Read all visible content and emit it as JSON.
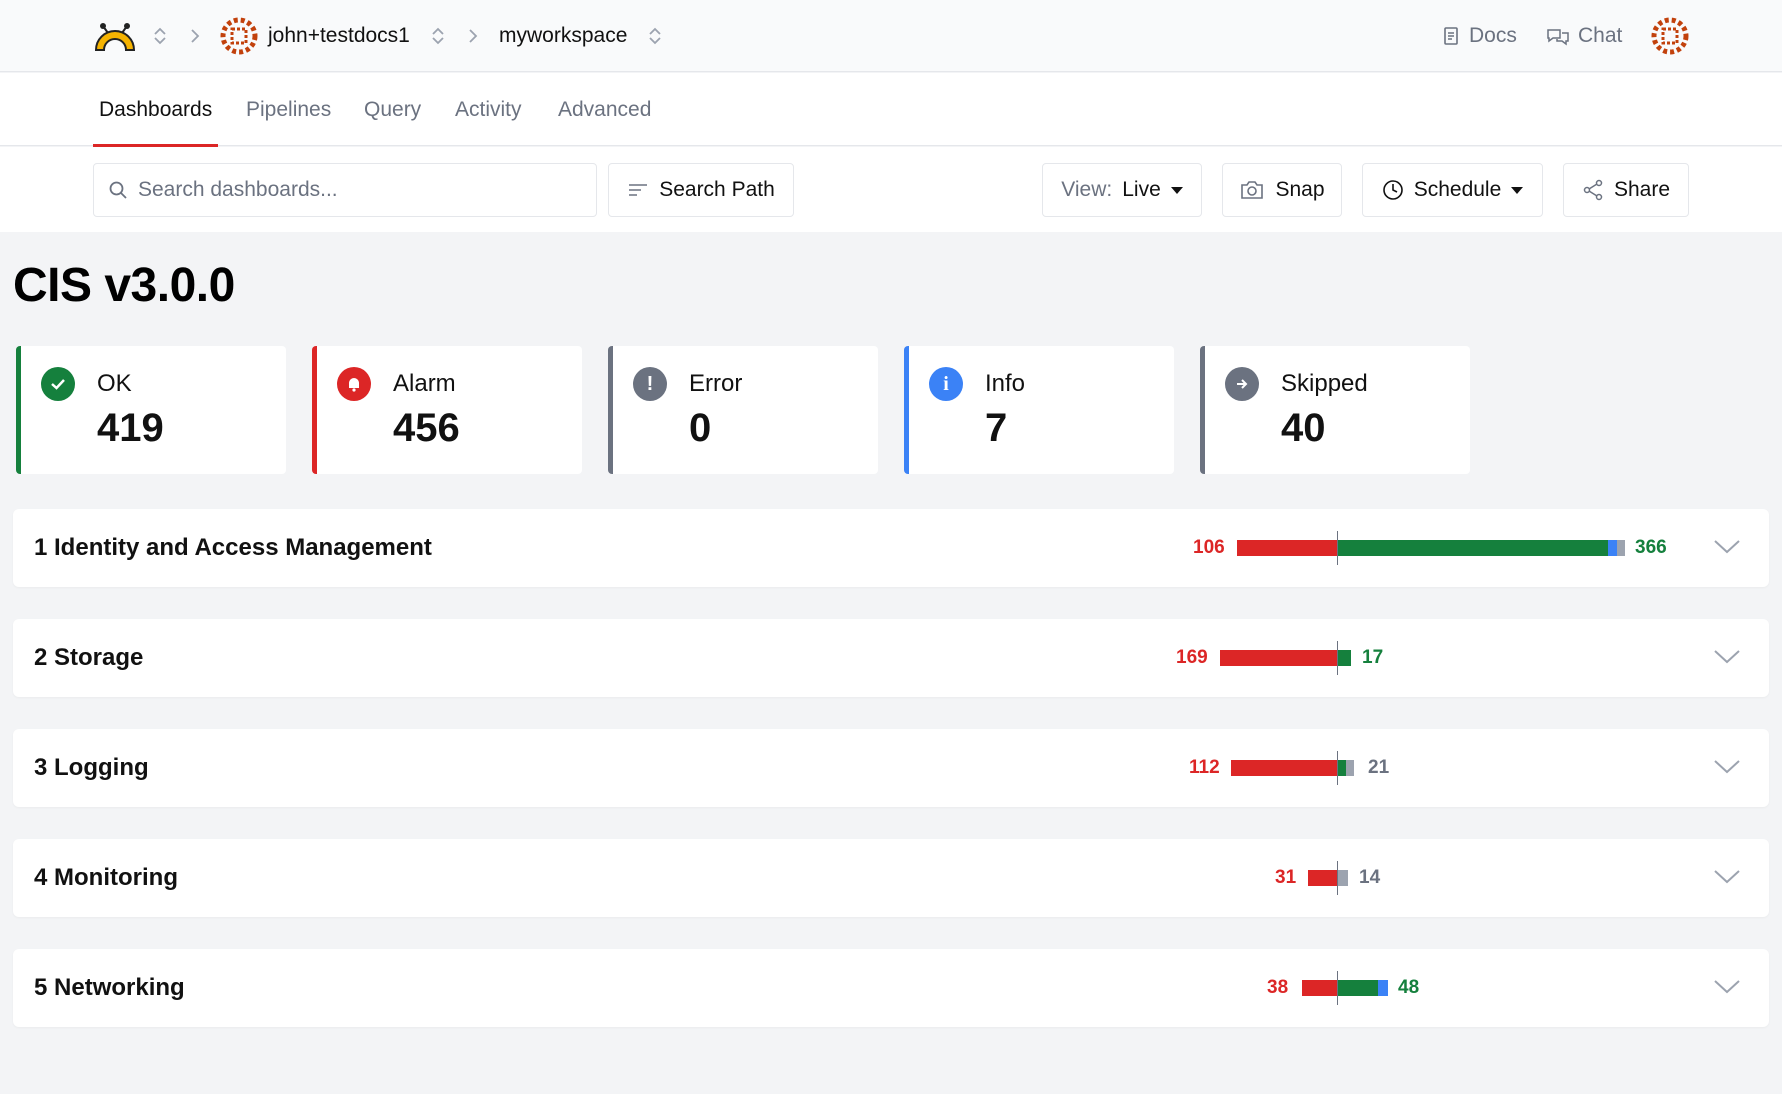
{
  "breadcrumb": {
    "org": "john+testdocs1",
    "workspace": "myworkspace"
  },
  "header_links": {
    "docs": "Docs",
    "chat": "Chat"
  },
  "tabs": [
    {
      "label": "Dashboards",
      "active": true
    },
    {
      "label": "Pipelines",
      "active": false
    },
    {
      "label": "Query",
      "active": false
    },
    {
      "label": "Activity",
      "active": false
    },
    {
      "label": "Advanced",
      "active": false
    }
  ],
  "toolbar": {
    "search_placeholder": "Search dashboards...",
    "search_path_label": "Search Path",
    "view_label": "View:",
    "view_value": "Live",
    "snap_label": "Snap",
    "schedule_label": "Schedule",
    "share_label": "Share"
  },
  "page_title": "CIS v3.0.0",
  "summary": [
    {
      "label": "OK",
      "value": "419",
      "color": "#15803d",
      "icon": "check-circle-icon"
    },
    {
      "label": "Alarm",
      "value": "456",
      "color": "#dc2626",
      "icon": "bell-icon"
    },
    {
      "label": "Error",
      "value": "0",
      "color": "#6b7280",
      "icon": "exclamation-icon"
    },
    {
      "label": "Info",
      "value": "7",
      "color": "#3b82f6",
      "icon": "info-icon"
    },
    {
      "label": "Skipped",
      "value": "40",
      "color": "#6b7280",
      "icon": "arrow-right-icon"
    }
  ],
  "benchmarks": [
    {
      "title": "1 Identity and Access Management",
      "alarm": "106",
      "right_value": "366",
      "right_type": "ok"
    },
    {
      "title": "2 Storage",
      "alarm": "169",
      "right_value": "17",
      "right_type": "ok"
    },
    {
      "title": "3 Logging",
      "alarm": "112",
      "right_value": "21",
      "right_type": "skip"
    },
    {
      "title": "4 Monitoring",
      "alarm": "31",
      "right_value": "14",
      "right_type": "skip"
    },
    {
      "title": "5 Networking",
      "alarm": "38",
      "right_value": "48",
      "right_type": "ok"
    }
  ],
  "colors": {
    "alarm": "#dc2626",
    "ok": "#15803d",
    "info": "#3b82f6",
    "skip": "#6b7280",
    "accent": "#dc2626"
  }
}
